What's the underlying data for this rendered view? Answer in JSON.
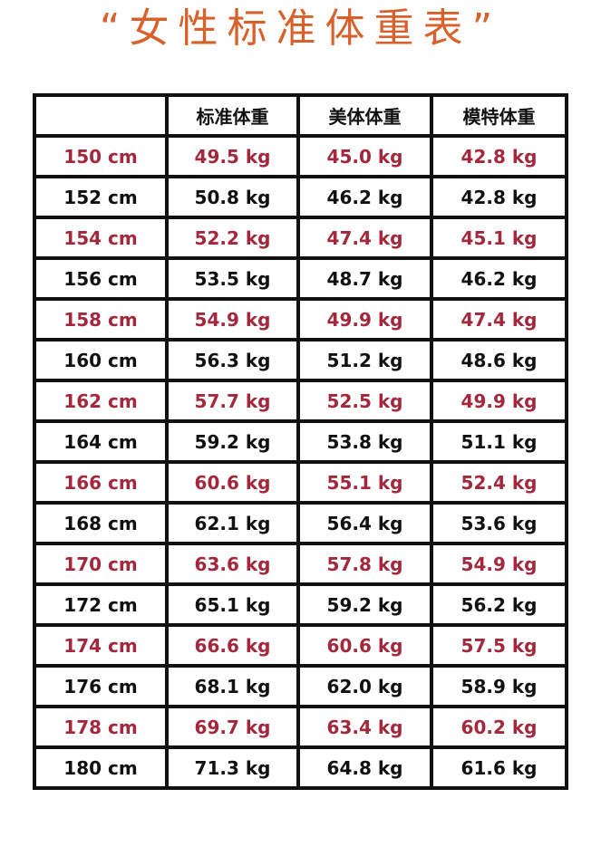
{
  "title": "“女性标准体重表”",
  "colors": {
    "title": "#d8612b",
    "highlight_row_text": "#a3283c",
    "normal_row_text": "#111111",
    "border": "#111111"
  },
  "table": {
    "headers": [
      "",
      "标准体重",
      "美体体重",
      "模特体重"
    ],
    "rows": [
      [
        "150 cm",
        "49.5 kg",
        "45.0 kg",
        "42.8 kg"
      ],
      [
        "152 cm",
        "50.8 kg",
        "46.2 kg",
        "42.8 kg"
      ],
      [
        "154 cm",
        "52.2 kg",
        "47.4 kg",
        "45.1 kg"
      ],
      [
        "156 cm",
        "53.5 kg",
        "48.7 kg",
        "46.2 kg"
      ],
      [
        "158 cm",
        "54.9 kg",
        "49.9 kg",
        "47.4 kg"
      ],
      [
        "160 cm",
        "56.3 kg",
        "51.2 kg",
        "48.6 kg"
      ],
      [
        "162 cm",
        "57.7 kg",
        "52.5 kg",
        "49.9 kg"
      ],
      [
        "164 cm",
        "59.2 kg",
        "53.8 kg",
        "51.1 kg"
      ],
      [
        "166 cm",
        "60.6 kg",
        "55.1 kg",
        "52.4 kg"
      ],
      [
        "168 cm",
        "62.1 kg",
        "56.4 kg",
        "53.6 kg"
      ],
      [
        "170 cm",
        "63.6 kg",
        "57.8 kg",
        "54.9 kg"
      ],
      [
        "172 cm",
        "65.1 kg",
        "59.2 kg",
        "56.2 kg"
      ],
      [
        "174 cm",
        "66.6 kg",
        "60.6 kg",
        "57.5 kg"
      ],
      [
        "176 cm",
        "68.1 kg",
        "62.0 kg",
        "58.9 kg"
      ],
      [
        "178 cm",
        "69.7 kg",
        "63.4 kg",
        "60.2 kg"
      ],
      [
        "180 cm",
        "71.3 kg",
        "64.8 kg",
        "61.6 kg"
      ]
    ]
  }
}
